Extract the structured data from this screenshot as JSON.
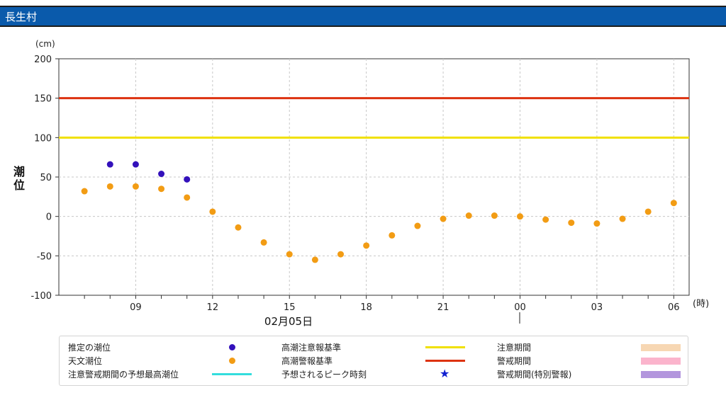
{
  "header": {
    "title": "長生村"
  },
  "chart_data": {
    "type": "scatter",
    "ylabel_unit": "(cm)",
    "ylabel": "潮位",
    "xunit": "(時)",
    "date_label": "02月05日",
    "ylim": [
      -100,
      200
    ],
    "yticks": [
      "200",
      "150",
      "100",
      "50",
      "0",
      "-50",
      "-100"
    ],
    "xtick_labels": [
      "09",
      "12",
      "15",
      "18",
      "21",
      "00",
      "03",
      "06"
    ],
    "x_hours": [
      7,
      8,
      9,
      10,
      11,
      12,
      13,
      14,
      15,
      16,
      17,
      18,
      19,
      20,
      21,
      22,
      23,
      24,
      25,
      26,
      27,
      28,
      29,
      30
    ],
    "series": [
      {
        "name": "推定の潮位",
        "color": "#3311bb",
        "x": [
          8,
          9,
          10,
          11
        ],
        "values": [
          66,
          66,
          54,
          47
        ]
      },
      {
        "name": "天文潮位",
        "color": "#f29c14",
        "x": [
          7,
          8,
          9,
          10,
          11,
          12,
          13,
          14,
          15,
          16,
          17,
          18,
          19,
          20,
          21,
          22,
          23,
          24,
          25,
          26,
          27,
          28,
          29,
          30
        ],
        "values": [
          32,
          38,
          38,
          35,
          24,
          6,
          -14,
          -33,
          -48,
          -55,
          -48,
          -37,
          -24,
          -12,
          -3,
          1,
          1,
          0,
          -4,
          -8,
          -9,
          -3,
          6,
          17
        ]
      }
    ],
    "thresholds": [
      {
        "name": "高潮注意報基準",
        "value": 100,
        "color": "#f0e000"
      },
      {
        "name": "高潮警報基準",
        "value": 150,
        "color": "#dd3311"
      }
    ],
    "grid": true
  },
  "legend": {
    "items": [
      {
        "label": "推定の潮位",
        "color": "#3311bb"
      },
      {
        "label": "天文潮位",
        "color": "#f29c14"
      },
      {
        "label": "注意警戒期間の予想最高潮位",
        "color": "#33dddd"
      },
      {
        "label": "高潮注意報基準",
        "color": "#f0e000"
      },
      {
        "label": "高潮警報基準",
        "color": "#dd3311"
      },
      {
        "label": "予想されるピーク時刻",
        "color": "#1020d0",
        "icon": "star-icon"
      },
      {
        "label": "注意期間",
        "color": "#f7d7b3"
      },
      {
        "label": "警戒期間",
        "color": "#fbb4cc"
      },
      {
        "label": "警戒期間(特別警報)",
        "color": "#b396dd"
      }
    ]
  }
}
